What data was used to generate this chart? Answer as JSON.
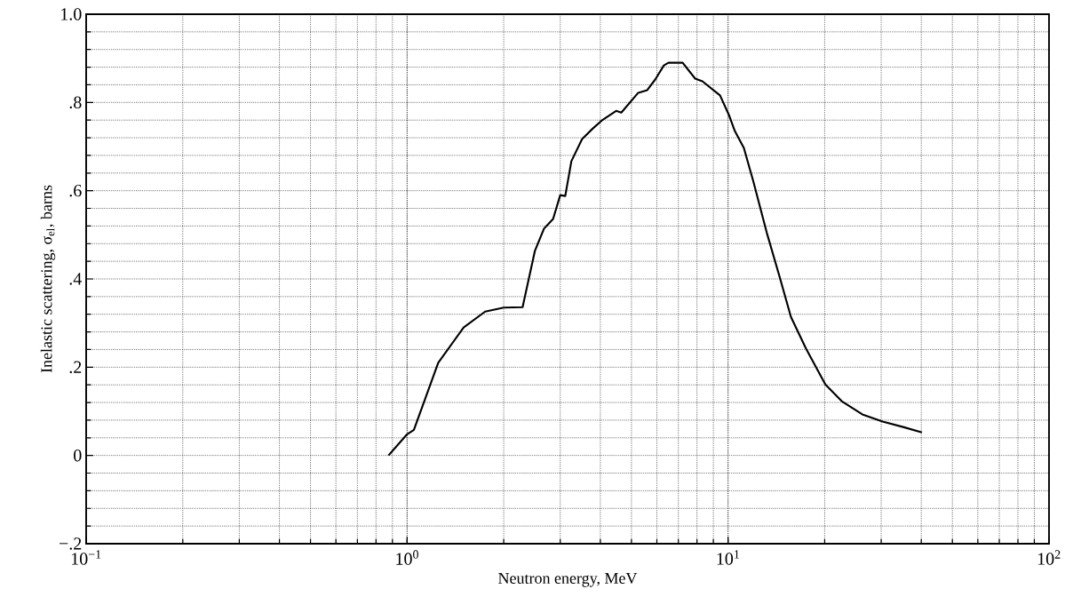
{
  "chart_data": {
    "type": "line",
    "xlabel": "Neutron energy, MeV",
    "ylabel": "Inelastic scattering, σ$_{el}$, barns",
    "log": "x",
    "grid": true,
    "xlim": [
      0.1,
      100
    ],
    "ylim": [
      -0.2,
      1.0
    ],
    "xticks": [
      {
        "value": 0.1,
        "label": "10$^{−1}$"
      },
      {
        "value": 1,
        "label": "10$^{0}$"
      },
      {
        "value": 10,
        "label": "10$^{1}$"
      },
      {
        "value": 100,
        "label": "10$^{2}$"
      }
    ],
    "yticks": [
      {
        "value": -0.2,
        "label": "−.2"
      },
      {
        "value": 0,
        "label": "0"
      },
      {
        "value": 0.2,
        "label": ".2"
      },
      {
        "value": 0.4,
        "label": ".4"
      },
      {
        "value": 0.6,
        "label": ".6"
      },
      {
        "value": 0.8,
        "label": ".8"
      },
      {
        "value": 1.0,
        "label": "1.0"
      }
    ],
    "series": [
      {
        "color": "#000000",
        "x": [
          0.875,
          1.0,
          1.05,
          1.25,
          1.5,
          1.75,
          2.0,
          2.29,
          2.5,
          2.67,
          2.85,
          3.0,
          3.11,
          3.25,
          3.51,
          3.79,
          4.04,
          4.48,
          4.65,
          5.25,
          5.6,
          5.93,
          6.31,
          6.52,
          7.22,
          7.9,
          8.32,
          9.44,
          10.07,
          10.5,
          11.2,
          12.0,
          13.2,
          14.5,
          15.7,
          17.5,
          20.1,
          22.6,
          26.2,
          30.3,
          35.3,
          40.2
        ],
        "values": [
          0.0,
          0.048,
          0.058,
          0.21,
          0.29,
          0.326,
          0.335,
          0.336,
          0.463,
          0.514,
          0.536,
          0.59,
          0.588,
          0.667,
          0.717,
          0.741,
          0.759,
          0.781,
          0.777,
          0.822,
          0.828,
          0.852,
          0.884,
          0.89,
          0.89,
          0.854,
          0.848,
          0.816,
          0.771,
          0.735,
          0.697,
          0.62,
          0.505,
          0.403,
          0.314,
          0.242,
          0.161,
          0.123,
          0.093,
          0.077,
          0.064,
          0.052
        ]
      }
    ]
  }
}
